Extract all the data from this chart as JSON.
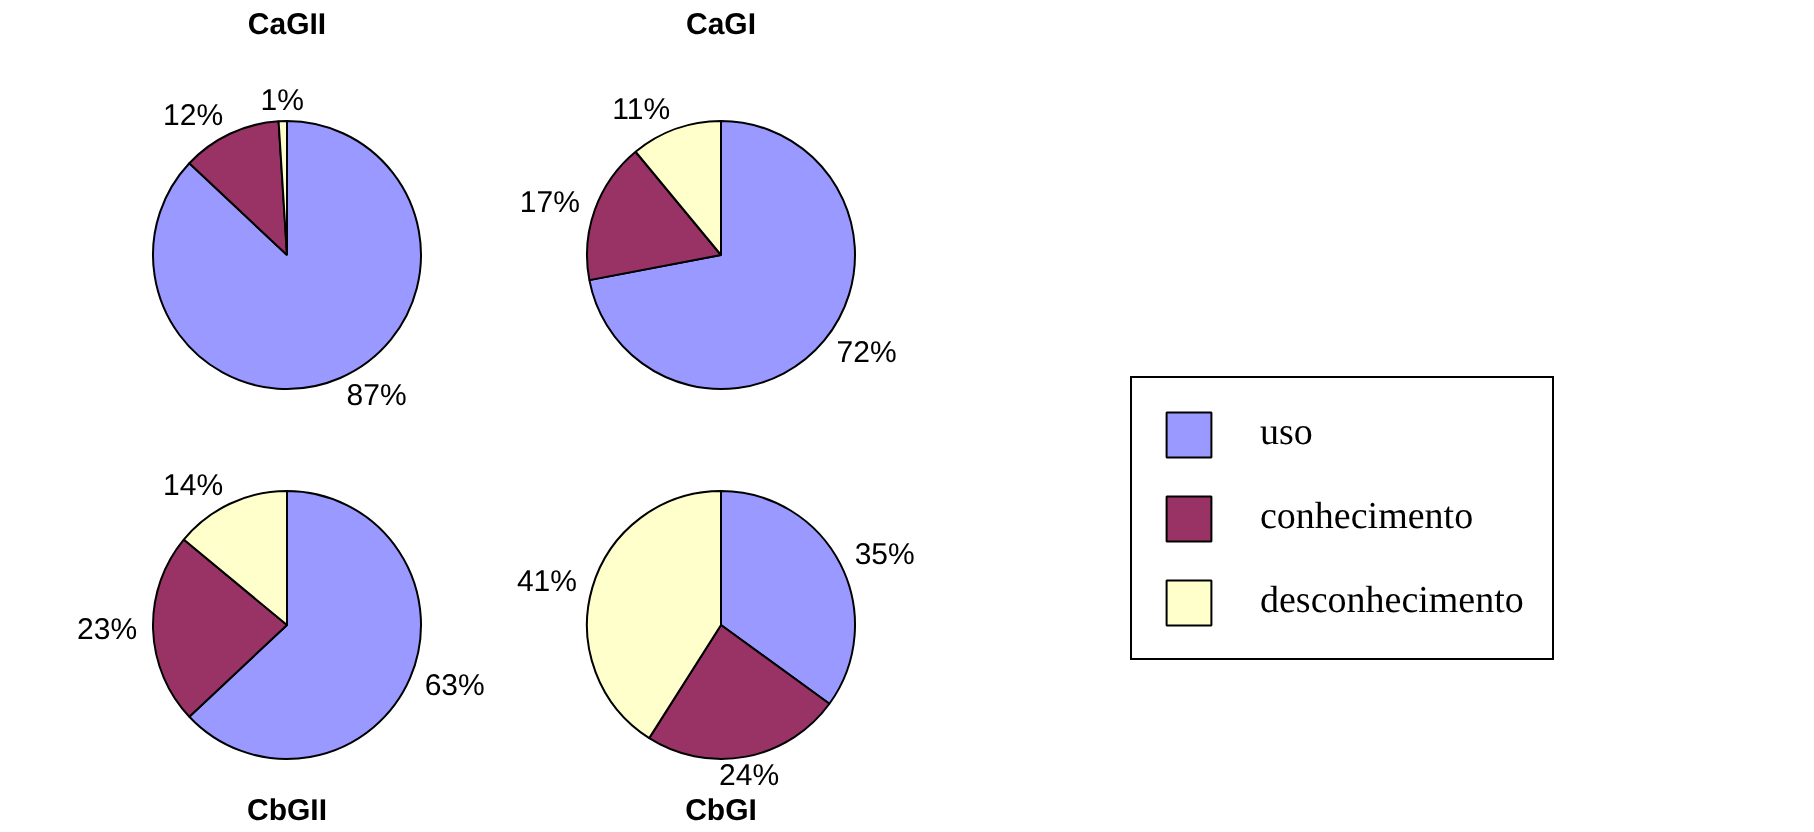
{
  "chart_data": [
    {
      "type": "pie",
      "title": "CaGII",
      "categories": [
        "uso",
        "conhecimento",
        "desconhecimento"
      ],
      "values": [
        87,
        12,
        1
      ],
      "colors": [
        "#9999ff",
        "#993366",
        "#ffffcc"
      ],
      "value_labels": [
        "87%",
        "12%",
        "1%"
      ],
      "legend": "right"
    },
    {
      "type": "pie",
      "title": "CaGI",
      "categories": [
        null,
        null,
        null
      ],
      "values": [
        72,
        17,
        11
      ],
      "colors": [
        "#9999ff",
        "#993366",
        "#ffffcc"
      ],
      "value_labels": [
        "72%",
        "17%",
        "11%"
      ]
    },
    {
      "type": "pie",
      "title": "CbGII",
      "categories": [
        null,
        null,
        null
      ],
      "values": [
        63,
        23,
        14
      ],
      "colors": [
        "#9999ff",
        "#993366",
        "#ffffcc"
      ],
      "value_labels": [
        "63%",
        "23%",
        "14%"
      ]
    },
    {
      "type": "pie",
      "title": "CbGI",
      "categories": [
        null,
        null,
        null
      ],
      "values": [
        35,
        24,
        41
      ],
      "colors": [
        "#9999ff",
        "#993366",
        "#ffffcc"
      ],
      "value_labels": [
        "35%",
        "24%",
        "41%"
      ]
    }
  ]
}
